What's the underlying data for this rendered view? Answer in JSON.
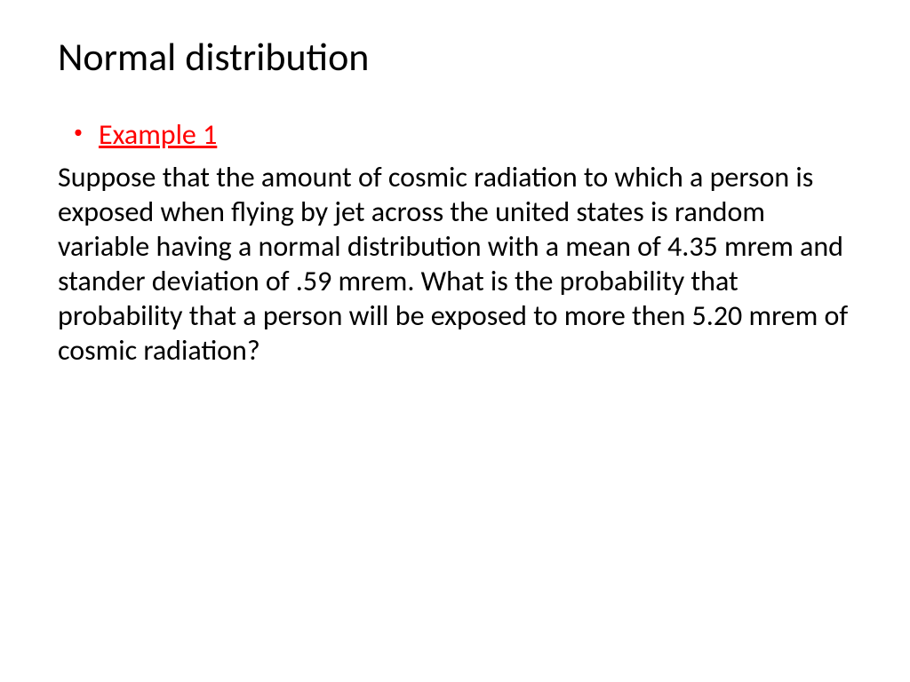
{
  "slide": {
    "title": "Normal distribution",
    "example_label": "Example 1",
    "body_text": "Suppose that the amount of cosmic radiation to which a person is exposed when flying by jet across the united states is random variable having a normal distribution with a mean of 4.35 mrem and stander deviation of .59 mrem. What is the probability that probability that a person will be exposed to more then 5.20 mrem of cosmic radiation?"
  },
  "colors": {
    "title_color": "#000000",
    "example_color": "#ff0000",
    "bullet_color": "#ff0000",
    "body_color": "#000000",
    "background": "#ffffff"
  },
  "typography": {
    "title_fontsize": 44,
    "body_fontsize": 32,
    "font_family": "Calibri"
  }
}
